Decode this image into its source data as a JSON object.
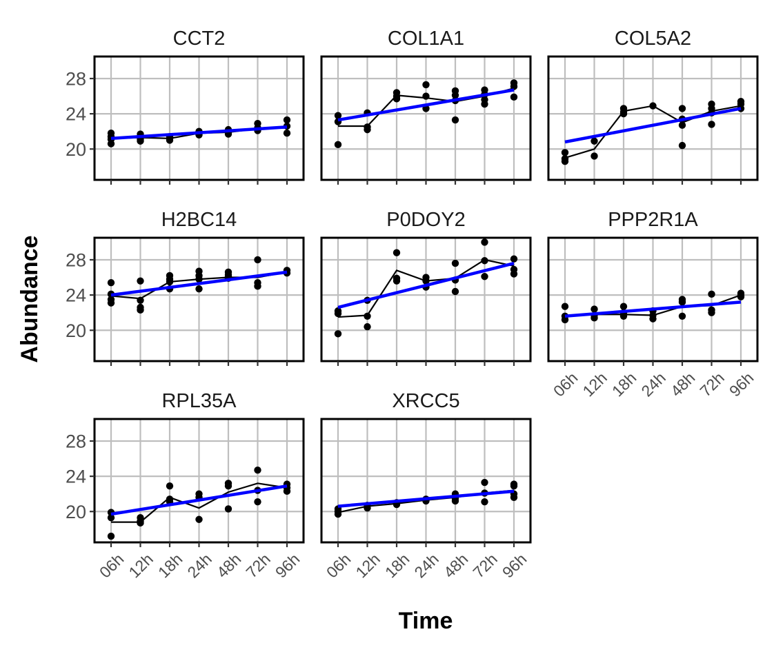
{
  "chart_data": {
    "type": "scatter",
    "layout": "facet-grid 3x3",
    "xlabel": "Time",
    "ylabel": "Abundance",
    "categories": [
      "06h",
      "12h",
      "18h",
      "24h",
      "48h",
      "72h",
      "96h"
    ],
    "ylim": [
      16.5,
      30.5
    ],
    "yticks": [
      20,
      24,
      28
    ],
    "grid": true,
    "colors": {
      "points": "#000000",
      "mean_line": "#000000",
      "trend_line": "#0000ff",
      "grid": "#bebebe",
      "panel_border": "#000000"
    },
    "panels": [
      {
        "name": "CCT2",
        "points": [
          [
            1,
            21.8
          ],
          [
            1,
            21.4
          ],
          [
            1,
            21.1
          ],
          [
            1,
            20.6
          ],
          [
            2,
            21.7
          ],
          [
            2,
            21.4
          ],
          [
            2,
            21.1
          ],
          [
            2,
            20.9
          ],
          [
            3,
            21.4
          ],
          [
            3,
            21.2
          ],
          [
            3,
            21.0
          ],
          [
            4,
            22.0
          ],
          [
            4,
            21.8
          ],
          [
            4,
            21.6
          ],
          [
            5,
            22.2
          ],
          [
            5,
            21.9
          ],
          [
            5,
            21.7
          ],
          [
            6,
            22.9
          ],
          [
            6,
            22.4
          ],
          [
            6,
            22.1
          ],
          [
            7,
            23.3
          ],
          [
            7,
            22.6
          ],
          [
            7,
            21.8
          ]
        ],
        "mean": [
          21.2,
          21.3,
          21.2,
          21.8,
          21.9,
          22.3,
          22.4
        ],
        "trend": [
          21.2,
          22.5
        ]
      },
      {
        "name": "COL1A1",
        "points": [
          [
            1,
            23.8
          ],
          [
            1,
            23.1
          ],
          [
            1,
            20.5
          ],
          [
            2,
            24.1
          ],
          [
            2,
            22.5
          ],
          [
            2,
            22.2
          ],
          [
            3,
            26.4
          ],
          [
            3,
            26.0
          ],
          [
            3,
            25.7
          ],
          [
            4,
            27.3
          ],
          [
            4,
            26.0
          ],
          [
            4,
            24.6
          ],
          [
            5,
            26.6
          ],
          [
            5,
            26.1
          ],
          [
            5,
            25.5
          ],
          [
            5,
            23.3
          ],
          [
            6,
            26.7
          ],
          [
            6,
            26.2
          ],
          [
            6,
            25.6
          ],
          [
            6,
            25.1
          ],
          [
            7,
            27.5
          ],
          [
            7,
            27.1
          ],
          [
            7,
            25.9
          ]
        ],
        "mean": [
          22.6,
          22.6,
          26.1,
          25.8,
          25.4,
          26.0,
          26.9
        ],
        "trend": [
          23.3,
          26.7
        ]
      },
      {
        "name": "COL5A2",
        "points": [
          [
            1,
            19.6
          ],
          [
            1,
            18.9
          ],
          [
            1,
            18.6
          ],
          [
            2,
            20.9
          ],
          [
            2,
            19.2
          ],
          [
            3,
            24.6
          ],
          [
            3,
            24.2
          ],
          [
            3,
            24.0
          ],
          [
            4,
            24.9
          ],
          [
            5,
            24.6
          ],
          [
            5,
            23.4
          ],
          [
            5,
            22.7
          ],
          [
            5,
            20.4
          ],
          [
            6,
            25.1
          ],
          [
            6,
            24.6
          ],
          [
            6,
            24.1
          ],
          [
            6,
            22.8
          ],
          [
            7,
            25.4
          ],
          [
            7,
            25.1
          ],
          [
            7,
            24.6
          ]
        ],
        "mean": [
          19.0,
          20.0,
          24.3,
          24.9,
          23.0,
          24.3,
          24.9
        ],
        "trend": [
          20.8,
          24.6
        ]
      },
      {
        "name": "H2BC14",
        "points": [
          [
            1,
            25.4
          ],
          [
            1,
            24.1
          ],
          [
            1,
            23.5
          ],
          [
            1,
            23.1
          ],
          [
            2,
            25.6
          ],
          [
            2,
            23.4
          ],
          [
            2,
            22.6
          ],
          [
            2,
            22.3
          ],
          [
            3,
            26.2
          ],
          [
            3,
            25.8
          ],
          [
            3,
            25.5
          ],
          [
            3,
            24.7
          ],
          [
            4,
            26.7
          ],
          [
            4,
            26.2
          ],
          [
            4,
            25.8
          ],
          [
            4,
            24.7
          ],
          [
            5,
            26.6
          ],
          [
            5,
            26.3
          ],
          [
            5,
            26.1
          ],
          [
            5,
            25.9
          ],
          [
            6,
            28.0
          ],
          [
            6,
            25.4
          ],
          [
            6,
            25.0
          ],
          [
            7,
            26.8
          ],
          [
            7,
            26.5
          ]
        ],
        "mean": [
          23.9,
          23.6,
          25.5,
          25.8,
          26.0,
          26.0,
          26.6
        ],
        "trend": [
          24.0,
          26.6
        ]
      },
      {
        "name": "P0DOY2",
        "points": [
          [
            1,
            22.2
          ],
          [
            1,
            21.9
          ],
          [
            1,
            19.6
          ],
          [
            2,
            23.4
          ],
          [
            2,
            21.6
          ],
          [
            2,
            20.4
          ],
          [
            3,
            28.8
          ],
          [
            3,
            25.9
          ],
          [
            3,
            25.6
          ],
          [
            4,
            26.0
          ],
          [
            4,
            25.6
          ],
          [
            4,
            24.9
          ],
          [
            5,
            27.6
          ],
          [
            5,
            25.7
          ],
          [
            5,
            24.4
          ],
          [
            6,
            30.0
          ],
          [
            6,
            27.9
          ],
          [
            6,
            26.1
          ],
          [
            7,
            28.1
          ],
          [
            7,
            26.9
          ],
          [
            7,
            26.4
          ]
        ],
        "mean": [
          21.5,
          21.7,
          26.8,
          25.6,
          25.9,
          28.0,
          27.3
        ],
        "trend": [
          22.6,
          27.6
        ]
      },
      {
        "name": "PPP2R1A",
        "points": [
          [
            1,
            22.7
          ],
          [
            1,
            21.6
          ],
          [
            1,
            21.2
          ],
          [
            2,
            22.4
          ],
          [
            2,
            21.7
          ],
          [
            2,
            21.4
          ],
          [
            3,
            22.7
          ],
          [
            3,
            22.0
          ],
          [
            3,
            21.6
          ],
          [
            4,
            22.2
          ],
          [
            4,
            21.7
          ],
          [
            4,
            21.3
          ],
          [
            5,
            23.5
          ],
          [
            5,
            23.2
          ],
          [
            5,
            21.6
          ],
          [
            6,
            24.1
          ],
          [
            6,
            22.3
          ],
          [
            6,
            22.0
          ],
          [
            7,
            24.2
          ],
          [
            7,
            24.0
          ],
          [
            7,
            23.8
          ]
        ],
        "mean": [
          21.6,
          21.8,
          21.8,
          21.7,
          22.7,
          22.8,
          24.0
        ],
        "trend": [
          21.6,
          23.2
        ]
      },
      {
        "name": "RPL35A",
        "points": [
          [
            1,
            19.9
          ],
          [
            1,
            19.3
          ],
          [
            1,
            17.2
          ],
          [
            2,
            19.3
          ],
          [
            2,
            18.9
          ],
          [
            2,
            18.7
          ],
          [
            3,
            22.9
          ],
          [
            3,
            21.4
          ],
          [
            3,
            21.1
          ],
          [
            4,
            22.0
          ],
          [
            4,
            21.6
          ],
          [
            4,
            19.1
          ],
          [
            5,
            23.2
          ],
          [
            5,
            22.9
          ],
          [
            5,
            20.3
          ],
          [
            6,
            24.7
          ],
          [
            6,
            22.4
          ],
          [
            6,
            21.1
          ],
          [
            7,
            23.1
          ],
          [
            7,
            22.7
          ],
          [
            7,
            22.3
          ]
        ],
        "mean": [
          18.8,
          18.8,
          21.6,
          20.4,
          22.2,
          23.2,
          22.7
        ],
        "trend": [
          19.7,
          22.9
        ]
      },
      {
        "name": "XRCC5",
        "points": [
          [
            1,
            20.3
          ],
          [
            1,
            20.0
          ],
          [
            1,
            19.7
          ],
          [
            2,
            20.7
          ],
          [
            2,
            20.4
          ],
          [
            3,
            21.0
          ],
          [
            3,
            20.8
          ],
          [
            4,
            21.4
          ],
          [
            4,
            21.2
          ],
          [
            5,
            22.0
          ],
          [
            5,
            21.5
          ],
          [
            5,
            21.2
          ],
          [
            6,
            23.3
          ],
          [
            6,
            22.1
          ],
          [
            6,
            21.1
          ],
          [
            7,
            23.1
          ],
          [
            7,
            22.9
          ],
          [
            7,
            22.0
          ],
          [
            7,
            21.6
          ]
        ],
        "mean": [
          19.9,
          20.6,
          20.9,
          21.3,
          21.6,
          22.1,
          22.4
        ],
        "trend": [
          20.6,
          22.3
        ]
      }
    ]
  }
}
